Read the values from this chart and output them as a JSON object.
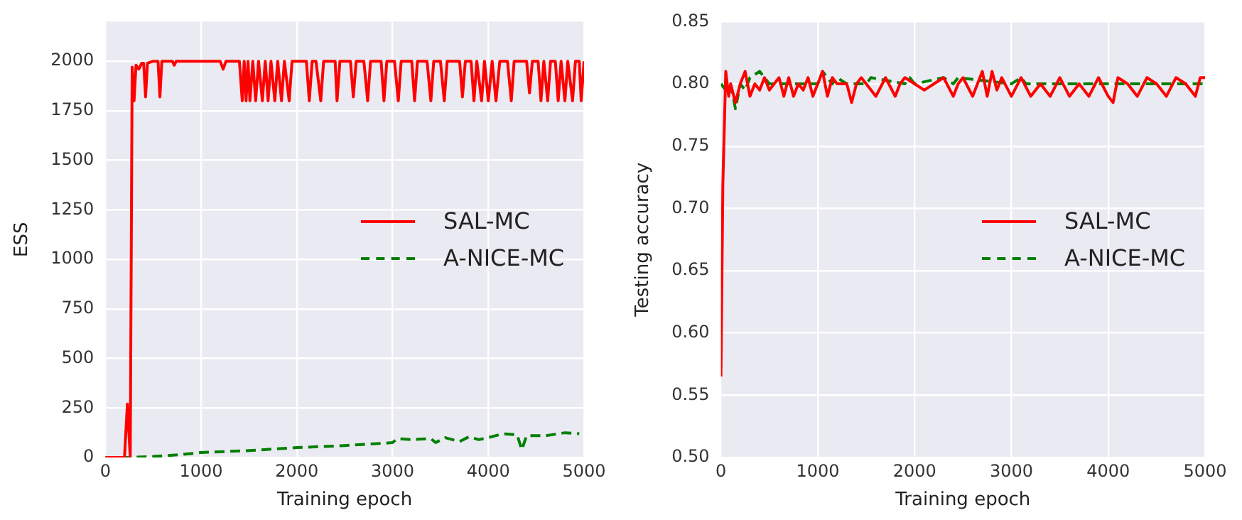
{
  "chart_data": [
    {
      "type": "line",
      "xlabel": "Training epoch",
      "ylabel": "ESS",
      "xlim": [
        0,
        5000
      ],
      "ylim": [
        0,
        2200
      ],
      "xticks": [
        0,
        1000,
        2000,
        3000,
        4000,
        5000
      ],
      "yticks": [
        0,
        250,
        500,
        750,
        1000,
        1250,
        1500,
        1750,
        2000
      ],
      "grid": true,
      "legend": "right",
      "marker": "none",
      "series": [
        {
          "name": "SAL-MC",
          "color": "#ff0000",
          "line_style": "solid",
          "x": [
            0,
            200,
            230,
            260,
            280,
            300,
            320,
            350,
            380,
            400,
            420,
            440,
            500,
            550,
            570,
            590,
            700,
            720,
            740,
            1000,
            1200,
            1230,
            1260,
            1400,
            1430,
            1450,
            1470,
            1490,
            1510,
            1540,
            1570,
            1600,
            1640,
            1670,
            1700,
            1730,
            1770,
            1800,
            1840,
            1870,
            1920,
            1950,
            2100,
            2130,
            2160,
            2200,
            2250,
            2280,
            2400,
            2420,
            2450,
            2560,
            2590,
            2620,
            2700,
            2740,
            2770,
            2880,
            2910,
            2940,
            3020,
            3060,
            3090,
            3200,
            3230,
            3260,
            3360,
            3400,
            3430,
            3500,
            3540,
            3570,
            3700,
            3730,
            3760,
            3820,
            3850,
            3880,
            3930,
            3960,
            4000,
            4040,
            4080,
            4120,
            4200,
            4240,
            4270,
            4400,
            4430,
            4460,
            4520,
            4550,
            4580,
            4620,
            4650,
            4700,
            4730,
            4760,
            4800,
            4830,
            4880,
            4910,
            4950,
            4970,
            5000
          ],
          "values": [
            0,
            0,
            270,
            0,
            1970,
            1800,
            1980,
            1960,
            1990,
            1990,
            1820,
            1990,
            2000,
            2000,
            1820,
            2000,
            2000,
            1980,
            2000,
            2000,
            2000,
            1960,
            2000,
            2000,
            1800,
            2000,
            1800,
            2000,
            1800,
            2000,
            1800,
            2000,
            1800,
            2000,
            1800,
            2000,
            1800,
            2000,
            1800,
            2000,
            1800,
            2000,
            2000,
            1800,
            2000,
            2000,
            1800,
            2000,
            2000,
            1800,
            2000,
            2000,
            1820,
            2000,
            2000,
            1800,
            2000,
            2000,
            1800,
            2000,
            2000,
            1800,
            2000,
            2000,
            1800,
            2000,
            2000,
            1800,
            2000,
            2000,
            1800,
            2000,
            2000,
            1820,
            2000,
            2000,
            1800,
            2000,
            1800,
            2000,
            1800,
            2000,
            1800,
            2000,
            2000,
            1800,
            2000,
            2000,
            1840,
            2000,
            2000,
            1800,
            2000,
            1800,
            2000,
            2000,
            1800,
            2000,
            1800,
            2000,
            1800,
            2000,
            2000,
            1800,
            2000
          ]
        },
        {
          "name": "A-NICE-MC",
          "color": "#008000",
          "line_style": "dashed",
          "x": [
            0,
            250,
            500,
            800,
            1000,
            1500,
            2000,
            2500,
            3000,
            3050,
            3200,
            3400,
            3450,
            3550,
            3700,
            3800,
            3900,
            4000,
            4150,
            4300,
            4350,
            4400,
            4600,
            4800,
            4950
          ],
          "values": [
            0,
            0,
            5,
            15,
            25,
            35,
            50,
            60,
            75,
            95,
            90,
            95,
            75,
            100,
            80,
            105,
            90,
            100,
            120,
            115,
            40,
            110,
            110,
            125,
            120
          ]
        }
      ]
    },
    {
      "type": "line",
      "xlabel": "Training epoch",
      "ylabel": "Testing accuracy",
      "xlim": [
        0,
        5000
      ],
      "ylim": [
        0.5,
        0.85
      ],
      "xticks": [
        0,
        1000,
        2000,
        3000,
        4000,
        5000
      ],
      "yticks": [
        {
          "value": 0.5,
          "label": "0.50"
        },
        {
          "value": 0.55,
          "label": "0.55"
        },
        {
          "value": 0.6,
          "label": "0.60"
        },
        {
          "value": 0.65,
          "label": "0.65"
        },
        {
          "value": 0.7,
          "label": "0.70"
        },
        {
          "value": 0.75,
          "label": "0.75"
        },
        {
          "value": 0.8,
          "label": "0.80"
        },
        {
          "value": 0.85,
          "label": "0.85"
        }
      ],
      "grid": true,
      "legend": "right",
      "marker": "none",
      "series": [
        {
          "name": "SAL-MC",
          "color": "#ff0000",
          "line_style": "solid",
          "x": [
            0,
            20,
            50,
            80,
            100,
            150,
            200,
            250,
            300,
            350,
            400,
            450,
            500,
            550,
            600,
            650,
            700,
            750,
            800,
            850,
            900,
            950,
            1000,
            1050,
            1100,
            1150,
            1200,
            1300,
            1350,
            1400,
            1450,
            1500,
            1600,
            1700,
            1800,
            1850,
            1900,
            2000,
            2100,
            2200,
            2300,
            2400,
            2450,
            2500,
            2600,
            2700,
            2750,
            2800,
            2850,
            2900,
            3000,
            3100,
            3200,
            3300,
            3400,
            3500,
            3600,
            3700,
            3800,
            3900,
            4000,
            4050,
            4100,
            4200,
            4300,
            4400,
            4500,
            4600,
            4700,
            4800,
            4900,
            4950,
            5000
          ],
          "values": [
            0.565,
            0.72,
            0.81,
            0.79,
            0.8,
            0.785,
            0.8,
            0.81,
            0.79,
            0.8,
            0.795,
            0.805,
            0.795,
            0.8,
            0.805,
            0.79,
            0.805,
            0.79,
            0.8,
            0.795,
            0.805,
            0.79,
            0.8,
            0.81,
            0.79,
            0.805,
            0.8,
            0.8,
            0.785,
            0.8,
            0.805,
            0.8,
            0.79,
            0.805,
            0.79,
            0.8,
            0.805,
            0.8,
            0.795,
            0.8,
            0.805,
            0.79,
            0.8,
            0.805,
            0.79,
            0.81,
            0.79,
            0.81,
            0.795,
            0.805,
            0.79,
            0.805,
            0.79,
            0.8,
            0.79,
            0.805,
            0.79,
            0.8,
            0.79,
            0.805,
            0.79,
            0.785,
            0.805,
            0.8,
            0.79,
            0.805,
            0.8,
            0.79,
            0.805,
            0.8,
            0.79,
            0.805,
            0.805
          ]
        },
        {
          "name": "A-NICE-MC",
          "color": "#008000",
          "line_style": "dashed",
          "x": [
            0,
            50,
            100,
            150,
            200,
            250,
            300,
            400,
            500,
            1000,
            1050,
            1150,
            1200,
            1300,
            1500,
            1550,
            1900,
            1950,
            2000,
            2300,
            2400,
            2450,
            3000,
            3100,
            3150,
            5000
          ],
          "values": [
            0.8,
            0.795,
            0.8,
            0.78,
            0.8,
            0.795,
            0.805,
            0.81,
            0.8,
            0.8,
            0.81,
            0.8,
            0.805,
            0.8,
            0.8,
            0.805,
            0.8,
            0.805,
            0.8,
            0.805,
            0.8,
            0.805,
            0.8,
            0.805,
            0.8,
            0.8
          ]
        }
      ]
    }
  ]
}
